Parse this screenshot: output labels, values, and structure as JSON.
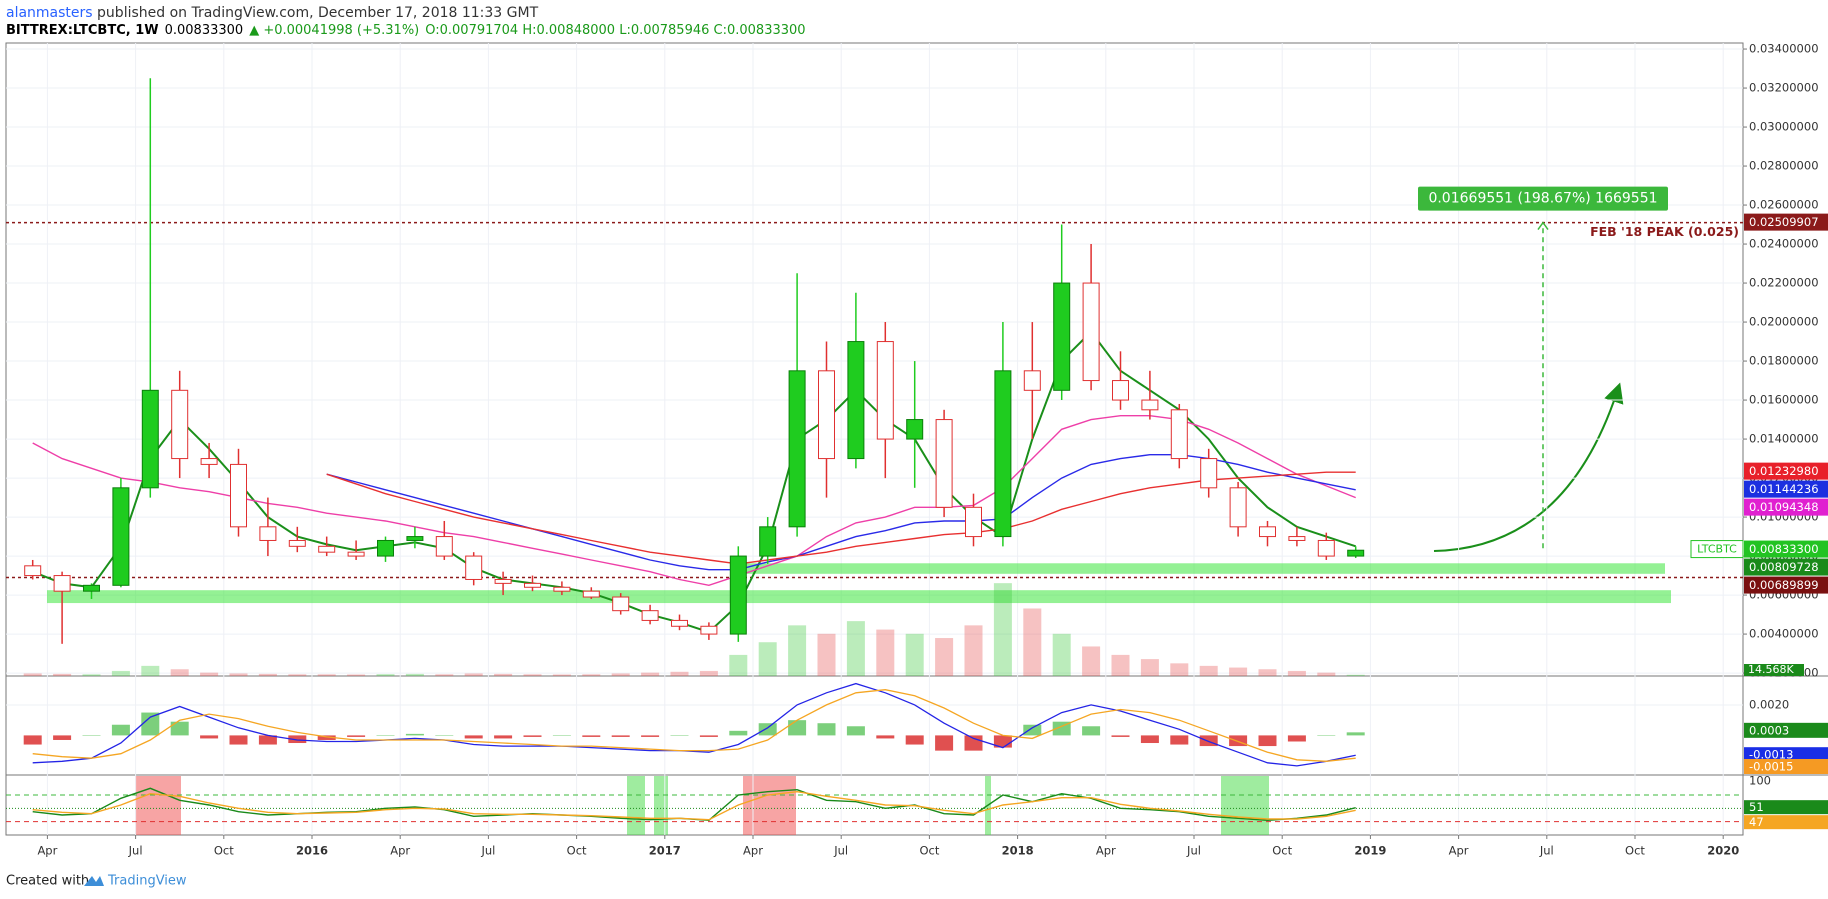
{
  "header": {
    "author": "alanmasters",
    "published": " published on TradingView.com, December 17, 2018 11:33 GMT",
    "symbol": "BITTREX:LTCBTC, 1W",
    "last": "0.00833300",
    "change": "▲ +0.00041998 (+5.31%)",
    "ohlc": "O:0.00791704 H:0.00848000 L:0.00785946 C:0.00833300"
  },
  "footer": {
    "created": "Created with",
    "brand": "TradingView"
  },
  "chart_data": {
    "type": "candlestick",
    "x": [
      "2015-03",
      "2015-04",
      "2015-05",
      "2015-06",
      "2015-07",
      "2015-08",
      "2015-09",
      "2015-10",
      "2015-11",
      "2015-12",
      "2016-01",
      "2016-02",
      "2016-03",
      "2016-04",
      "2016-05",
      "2016-06",
      "2016-07",
      "2016-08",
      "2016-09",
      "2016-10",
      "2016-11",
      "2016-12",
      "2017-01",
      "2017-02",
      "2017-03",
      "2017-04",
      "2017-05",
      "2017-06",
      "2017-07",
      "2017-08",
      "2017-09",
      "2017-10",
      "2017-11",
      "2017-12",
      "2018-01",
      "2018-02",
      "2018-03",
      "2018-04",
      "2018-05",
      "2018-06",
      "2018-07",
      "2018-08",
      "2018-09",
      "2018-10",
      "2018-11",
      "2018-12"
    ],
    "open": [
      0.0075,
      0.007,
      0.0062,
      0.0065,
      0.0115,
      0.0165,
      0.013,
      0.0127,
      0.0095,
      0.0088,
      0.0085,
      0.0082,
      0.008,
      0.0088,
      0.009,
      0.008,
      0.0068,
      0.0066,
      0.0064,
      0.0062,
      0.0059,
      0.0052,
      0.0047,
      0.0044,
      0.004,
      0.008,
      0.0095,
      0.0175,
      0.013,
      0.019,
      0.014,
      0.015,
      0.0105,
      0.009,
      0.0175,
      0.0165,
      0.022,
      0.017,
      0.016,
      0.0155,
      0.013,
      0.0115,
      0.0095,
      0.009,
      0.0088,
      0.008
    ],
    "high": [
      0.0078,
      0.0072,
      0.0066,
      0.012,
      0.0325,
      0.0175,
      0.0138,
      0.0135,
      0.011,
      0.0095,
      0.009,
      0.0088,
      0.009,
      0.0095,
      0.0098,
      0.0082,
      0.0072,
      0.007,
      0.0067,
      0.0064,
      0.0061,
      0.0055,
      0.005,
      0.0046,
      0.0085,
      0.01,
      0.0225,
      0.019,
      0.0215,
      0.02,
      0.018,
      0.0155,
      0.0112,
      0.02,
      0.02,
      0.025,
      0.024,
      0.0185,
      0.0175,
      0.0158,
      0.0135,
      0.0118,
      0.0098,
      0.0095,
      0.0092,
      0.0085
    ],
    "low": [
      0.0068,
      0.0035,
      0.0058,
      0.0064,
      0.011,
      0.012,
      0.012,
      0.009,
      0.008,
      0.0082,
      0.008,
      0.0078,
      0.0077,
      0.0084,
      0.0078,
      0.0065,
      0.006,
      0.0062,
      0.006,
      0.0058,
      0.005,
      0.0045,
      0.0042,
      0.0037,
      0.0036,
      0.0076,
      0.009,
      0.011,
      0.0125,
      0.012,
      0.0115,
      0.01,
      0.0085,
      0.0085,
      0.014,
      0.016,
      0.0165,
      0.0155,
      0.015,
      0.0125,
      0.011,
      0.009,
      0.0085,
      0.0085,
      0.0078,
      0.0079
    ],
    "close": [
      0.007,
      0.0062,
      0.0065,
      0.0115,
      0.0165,
      0.013,
      0.0127,
      0.0095,
      0.0088,
      0.0085,
      0.0082,
      0.008,
      0.0088,
      0.009,
      0.008,
      0.0068,
      0.0066,
      0.0064,
      0.0062,
      0.0059,
      0.0052,
      0.0047,
      0.0044,
      0.004,
      0.008,
      0.0095,
      0.0175,
      0.013,
      0.019,
      0.014,
      0.015,
      0.0105,
      0.009,
      0.0175,
      0.0165,
      0.022,
      0.017,
      0.016,
      0.0155,
      0.013,
      0.0115,
      0.0095,
      0.009,
      0.0088,
      0.008,
      0.0083
    ],
    "up_color": "#1fcc1f",
    "down_color": "#e03030",
    "volume": [
      30000,
      25000,
      20000,
      60000,
      120000,
      80000,
      40000,
      30000,
      25000,
      20000,
      20000,
      18000,
      22000,
      25000,
      20000,
      30000,
      25000,
      20000,
      18000,
      20000,
      30000,
      40000,
      50000,
      60000,
      250000,
      400000,
      600000,
      500000,
      650000,
      550000,
      500000,
      450000,
      600000,
      1100000,
      800000,
      500000,
      350000,
      250000,
      200000,
      150000,
      120000,
      100000,
      80000,
      60000,
      40000,
      14568
    ],
    "volume_ylim": [
      0,
      7500000
    ],
    "volume_tag": {
      "value": 14568,
      "label": "14.568K",
      "color": "#1a8a1a"
    },
    "moving_averages": [
      {
        "color": "#1a8f1a",
        "values": [
          0.0072,
          0.0066,
          0.0064,
          0.0085,
          0.013,
          0.015,
          0.0135,
          0.0118,
          0.01,
          0.009,
          0.0086,
          0.0083,
          0.0085,
          0.0087,
          0.0084,
          0.0074,
          0.0068,
          0.0066,
          0.0064,
          0.0061,
          0.0056,
          0.005,
          0.0046,
          0.0041,
          0.0055,
          0.0085,
          0.014,
          0.015,
          0.0165,
          0.015,
          0.014,
          0.0115,
          0.01,
          0.009,
          0.014,
          0.018,
          0.0195,
          0.0175,
          0.0165,
          0.0155,
          0.014,
          0.012,
          0.0105,
          0.0095,
          0.009,
          0.0085
        ]
      },
      {
        "color": "#ee3fa8",
        "values": [
          0.0138,
          0.013,
          0.0125,
          0.012,
          0.0118,
          0.0115,
          0.0113,
          0.011,
          0.0107,
          0.0105,
          0.0102,
          0.01,
          0.0098,
          0.0095,
          0.0092,
          0.009,
          0.0087,
          0.0084,
          0.0081,
          0.0078,
          0.0075,
          0.0072,
          0.0068,
          0.0065,
          0.007,
          0.0075,
          0.008,
          0.009,
          0.0097,
          0.01,
          0.0105,
          0.0105,
          0.0106,
          0.0115,
          0.013,
          0.0145,
          0.015,
          0.0152,
          0.0152,
          0.015,
          0.0145,
          0.0138,
          0.013,
          0.0122,
          0.0116,
          0.011
        ]
      },
      {
        "color": "#2a2ae8",
        "values": [
          null,
          null,
          null,
          null,
          null,
          null,
          null,
          null,
          null,
          null,
          0.0122,
          0.0118,
          0.0114,
          0.011,
          0.0106,
          0.0102,
          0.0098,
          0.0094,
          0.009,
          0.0086,
          0.0082,
          0.0078,
          0.0075,
          0.0073,
          0.0073,
          0.0077,
          0.008,
          0.0085,
          0.009,
          0.0093,
          0.0097,
          0.0098,
          0.0098,
          0.0099,
          0.011,
          0.012,
          0.0127,
          0.013,
          0.0132,
          0.0132,
          0.013,
          0.0127,
          0.0123,
          0.012,
          0.0117,
          0.0114
        ]
      },
      {
        "color": "#e83030",
        "values": [
          null,
          null,
          null,
          null,
          null,
          null,
          null,
          null,
          null,
          null,
          0.0122,
          0.0117,
          0.0112,
          0.0108,
          0.0104,
          0.01,
          0.0097,
          0.0094,
          0.0091,
          0.0088,
          0.0085,
          0.0082,
          0.008,
          0.0078,
          0.0076,
          0.0078,
          0.008,
          0.0082,
          0.0085,
          0.0087,
          0.0089,
          0.0091,
          0.0092,
          0.0094,
          0.0098,
          0.0104,
          0.0108,
          0.0112,
          0.0115,
          0.0117,
          0.0119,
          0.012,
          0.0121,
          0.0122,
          0.0123,
          0.0123
        ]
      }
    ],
    "ylim": [
      0.00185,
      0.03431
    ],
    "yticks": [
      {
        "value": 0.002,
        "label": "0.00200000"
      },
      {
        "value": 0.004,
        "label": "0.00400000"
      },
      {
        "value": 0.006,
        "label": "0.00600000"
      },
      {
        "value": 0.008,
        "label": "0.00800000"
      },
      {
        "value": 0.01,
        "label": "0.01000000"
      },
      {
        "value": 0.012,
        "label": "0.01200000"
      },
      {
        "value": 0.014,
        "label": "0.01400000"
      },
      {
        "value": 0.016,
        "label": "0.01600000"
      },
      {
        "value": 0.018,
        "label": "0.01800000"
      },
      {
        "value": 0.02,
        "label": "0.02000000"
      },
      {
        "value": 0.022,
        "label": "0.02200000"
      },
      {
        "value": 0.024,
        "label": "0.02400000"
      },
      {
        "value": 0.026,
        "label": "0.02600000"
      },
      {
        "value": 0.028,
        "label": "0.02800000"
      },
      {
        "value": 0.03,
        "label": "0.03000000"
      },
      {
        "value": 0.032,
        "label": "0.03200000"
      },
      {
        "value": 0.034,
        "label": "0.03400000"
      }
    ],
    "xticks": [
      {
        "value": "2015-04",
        "label": "Apr"
      },
      {
        "value": "2015-07",
        "label": "Jul"
      },
      {
        "value": "2015-10",
        "label": "Oct"
      },
      {
        "value": "2016-01",
        "label": "2016"
      },
      {
        "value": "2016-04",
        "label": "Apr"
      },
      {
        "value": "2016-07",
        "label": "Jul"
      },
      {
        "value": "2016-10",
        "label": "Oct"
      },
      {
        "value": "2017-01",
        "label": "2017"
      },
      {
        "value": "2017-04",
        "label": "Apr"
      },
      {
        "value": "2017-07",
        "label": "Jul"
      },
      {
        "value": "2017-10",
        "label": "Oct"
      },
      {
        "value": "2018-01",
        "label": "2018"
      },
      {
        "value": "2018-04",
        "label": "Apr"
      },
      {
        "value": "2018-07",
        "label": "Jul"
      },
      {
        "value": "2018-10",
        "label": "Oct"
      },
      {
        "value": "2019-01",
        "label": "2019"
      },
      {
        "value": "2019-04",
        "label": "Apr"
      },
      {
        "value": "2019-07",
        "label": "Jul"
      },
      {
        "value": "2019-10",
        "label": "Oct"
      },
      {
        "value": "2020-01",
        "label": "2020"
      }
    ],
    "grid": true,
    "hlines": [
      0.02509907,
      0.00689899
    ],
    "hline_color": "#8b1a1a",
    "peak_label": "FEB '18 PEAK (0.025)",
    "zones": [
      {
        "low": 0.00709,
        "high": 0.00763
      },
      {
        "low": 0.00559,
        "high": 0.00625
      }
    ],
    "zone_color": "rgba(60,230,60,0.55)",
    "measure": {
      "label": "0.01669551 (198.67%) 1669551",
      "from": 0.00840356,
      "to": 0.02509907,
      "color": "#3cb83c"
    },
    "price_tags": [
      {
        "value": 0.02509907,
        "label": "0.02509907",
        "color": "#8b1a1a"
      },
      {
        "value": 0.0123298,
        "label": "0.01232980",
        "color": "#e8202a"
      },
      {
        "value": 0.01144236,
        "label": "0.01144236",
        "color": "#1c2fe0"
      },
      {
        "value": 0.01094348,
        "label": "0.01094348",
        "color": "#e020d0"
      },
      {
        "value": 0.008333,
        "label": "0.00833300",
        "color": "#22c322",
        "prefix": "LTCBTC"
      },
      {
        "value": 0.00809728,
        "label": "0.00809728",
        "color": "#1a8a1a"
      },
      {
        "value": 0.00689899,
        "label": "0.00689899",
        "color": "#7a1010"
      }
    ],
    "macd": {
      "ylim": [
        -0.0026,
        0.0039
      ],
      "yticks": [
        {
          "value": 0.002,
          "label": "0.0020"
        }
      ],
      "histogram": [
        -0.0006,
        -0.0003,
        0.0,
        0.0007,
        0.0015,
        0.0009,
        -0.0002,
        -0.0006,
        -0.0006,
        -0.0005,
        -0.0003,
        -0.0001,
        0.0,
        0.0001,
        0.0,
        -0.0002,
        -0.0002,
        -0.0001,
        0.0,
        -0.0001,
        -0.0001,
        -0.0001,
        0.0,
        -0.0001,
        0.0003,
        0.0008,
        0.001,
        0.0008,
        0.0006,
        -0.0002,
        -0.0006,
        -0.001,
        -0.001,
        -0.0008,
        0.0007,
        0.0009,
        0.0006,
        -0.0001,
        -0.0005,
        -0.0006,
        -0.0007,
        -0.0007,
        -0.0007,
        -0.0004,
        0.0,
        0.0002
      ],
      "pos_color": "#7ccf7c",
      "neg_color": "#e05050",
      "macd": [
        -0.0018,
        -0.0017,
        -0.0015,
        -0.0005,
        0.0012,
        0.0019,
        0.0012,
        0.0005,
        0.0,
        -0.0003,
        -0.0004,
        -0.0004,
        -0.0003,
        -0.0002,
        -0.0003,
        -0.0006,
        -0.0007,
        -0.0007,
        -0.0007,
        -0.0008,
        -0.0009,
        -0.001,
        -0.001,
        -0.0011,
        -0.0006,
        0.0005,
        0.002,
        0.0028,
        0.0034,
        0.0028,
        0.002,
        0.0008,
        -0.0002,
        -0.0008,
        0.0005,
        0.0015,
        0.002,
        0.0016,
        0.001,
        0.0004,
        -0.0004,
        -0.0011,
        -0.0018,
        -0.002,
        -0.0017,
        -0.0013
      ],
      "macd_color": "#2424e6",
      "signal": [
        -0.0012,
        -0.0014,
        -0.0015,
        -0.0012,
        -0.0003,
        0.001,
        0.0014,
        0.0011,
        0.0006,
        0.0002,
        -0.0001,
        -0.0003,
        -0.0003,
        -0.0003,
        -0.0003,
        -0.0004,
        -0.0005,
        -0.0006,
        -0.0007,
        -0.0007,
        -0.0008,
        -0.0009,
        -0.001,
        -0.001,
        -0.0009,
        -0.0003,
        0.001,
        0.002,
        0.0028,
        0.003,
        0.0026,
        0.0018,
        0.0008,
        0.0,
        -0.0002,
        0.0006,
        0.0014,
        0.0017,
        0.0015,
        0.001,
        0.0003,
        -0.0004,
        -0.0011,
        -0.0016,
        -0.0017,
        -0.0015
      ],
      "signal_color": "#f5a623",
      "tags": [
        {
          "value": 0.0003,
          "color": "#1b8a1b"
        },
        {
          "value": -0.0013,
          "color": "#1a2ee6"
        },
        {
          "value": -0.0015,
          "color": "#f59a23"
        }
      ]
    },
    "rsi": {
      "ylim": [
        10,
        100
      ],
      "yticks": [
        100
      ],
      "levels": [
        {
          "value": 70,
          "color": "#3cb83c"
        },
        {
          "value": 50,
          "color": "#1a8a1a"
        },
        {
          "value": 30,
          "color": "#e03030"
        }
      ],
      "fast": [
        45,
        40,
        42,
        65,
        80,
        62,
        55,
        45,
        40,
        42,
        44,
        45,
        50,
        52,
        48,
        38,
        40,
        42,
        40,
        38,
        35,
        33,
        35,
        32,
        70,
        75,
        78,
        62,
        60,
        50,
        55,
        42,
        40,
        70,
        60,
        72,
        65,
        50,
        48,
        45,
        38,
        35,
        32,
        35,
        40,
        51
      ],
      "fast_color": "#1a8a1a",
      "slow": [
        48,
        44,
        42,
        55,
        72,
        68,
        58,
        50,
        44,
        42,
        43,
        44,
        48,
        50,
        49,
        42,
        41,
        41,
        40,
        39,
        37,
        35,
        35,
        33,
        55,
        70,
        75,
        68,
        62,
        55,
        54,
        47,
        42,
        55,
        60,
        66,
        66,
        56,
        50,
        46,
        41,
        37,
        34,
        34,
        38,
        47
      ],
      "slow_color": "#f5a623",
      "tags": [
        {
          "value": 51,
          "color": "#1a8a1a"
        },
        {
          "value": 47,
          "color": "#f5a623"
        }
      ]
    }
  }
}
